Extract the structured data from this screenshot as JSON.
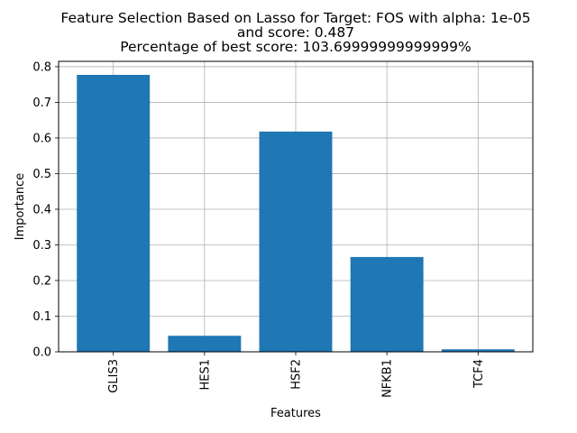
{
  "title_lines": [
    "Feature Selection Based on Lasso for Target: FOS with alpha: 1e-05",
    "and score: 0.487",
    "Percentage of best score: 103.69999999999999%"
  ],
  "chart_data": {
    "type": "bar",
    "categories": [
      "GLIS3",
      "HES1",
      "HSF2",
      "NFKB1",
      "TCF4"
    ],
    "values": [
      0.777,
      0.045,
      0.618,
      0.266,
      0.007
    ],
    "xlabel": "Features",
    "ylabel": "Importance",
    "ylim": [
      0,
      0.815
    ],
    "yticks": [
      0.0,
      0.1,
      0.2,
      0.3,
      0.4,
      0.5,
      0.6,
      0.7,
      0.8
    ],
    "ytick_labels": [
      "0.0",
      "0.1",
      "0.2",
      "0.3",
      "0.4",
      "0.5",
      "0.6",
      "0.7",
      "0.8"
    ],
    "grid": true,
    "bar_color": "#1f77b4",
    "grid_color": "#b0b0b0"
  }
}
